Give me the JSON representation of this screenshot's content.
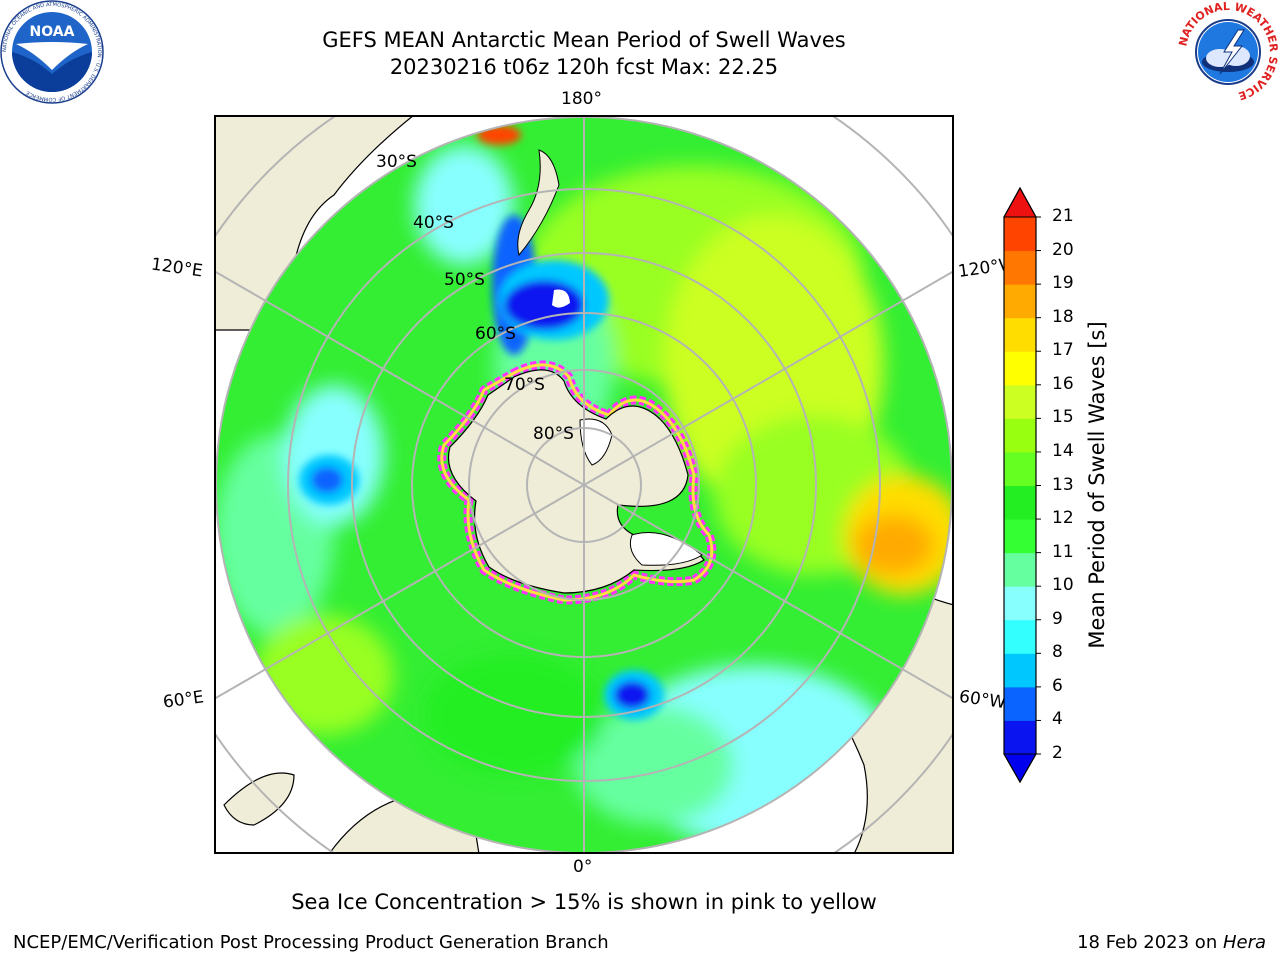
{
  "title": "GEFS MEAN Antarctic Mean Period of Swell Waves",
  "subtitle": "20230216 t06z 120h fcst   Max: 22.25",
  "map": {
    "projection": "south-polar-stereographic",
    "longitude_labels": [
      "180°",
      "120°E",
      "120°W",
      "60°E",
      "60°W",
      "0°"
    ],
    "latitude_labels": [
      "30°S",
      "40°S",
      "50°S",
      "60°S",
      "70°S",
      "80°S"
    ],
    "land_color": "#efedd8",
    "sea_ice_colors": [
      "#ff33ff",
      "#ffe040"
    ]
  },
  "colorbar": {
    "label": "Mean Period of Swell Waves [s]",
    "ticks": [
      "2",
      "4",
      "6",
      "8",
      "9",
      "10",
      "11",
      "12",
      "13",
      "14",
      "15",
      "16",
      "17",
      "18",
      "19",
      "20",
      "21"
    ],
    "colors": [
      "#0a14f0",
      "#0a64ff",
      "#00c8ff",
      "#33ffff",
      "#88ffff",
      "#66ffa0",
      "#33ff33",
      "#22ee22",
      "#66ff22",
      "#99ff11",
      "#ccff22",
      "#ffff00",
      "#ffdd00",
      "#ffaa00",
      "#ff7700",
      "#ff4400"
    ],
    "under_color": "#0000ee",
    "over_color": "#ee1111"
  },
  "footer": {
    "note": "Sea Ice Concentration > 15% is shown in pink to yellow",
    "left": "NCEP/EMC/Verification Post Processing Product Generation Branch",
    "date": "18 Feb 2023 on ",
    "host": "Hera"
  },
  "logos": {
    "noaa_text": "NOAA",
    "noaa_ring": "NATIONAL OCEANIC AND ATMOSPHERIC ADMINISTRATION · U.S. DEPARTMENT OF COMMERCE",
    "nws_ring": "NATIONAL WEATHER SERVICE"
  }
}
